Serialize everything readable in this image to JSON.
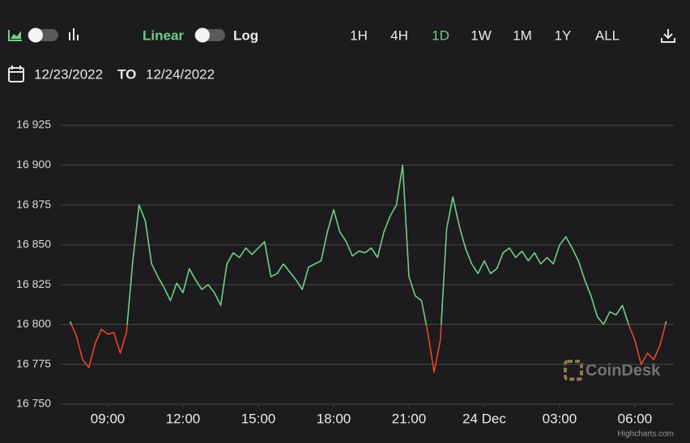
{
  "toolbar": {
    "scale_options": [
      "Linear",
      "Log"
    ],
    "scale": "Linear",
    "ranges": [
      "1H",
      "4H",
      "1D",
      "1W",
      "1M",
      "1Y",
      "ALL"
    ],
    "active_range": "1D",
    "date_from": "12/23/2022",
    "date_separator": "TO",
    "date_to": "12/24/2022"
  },
  "chart_data": {
    "type": "line",
    "x": [
      7.5,
      7.75,
      8,
      8.25,
      8.5,
      8.75,
      9,
      9.25,
      9.5,
      9.75,
      10,
      10.25,
      10.5,
      10.75,
      11,
      11.25,
      11.5,
      11.75,
      12,
      12.25,
      12.5,
      12.75,
      13,
      13.25,
      13.5,
      13.75,
      14,
      14.25,
      14.5,
      14.75,
      15,
      15.25,
      15.5,
      15.75,
      16,
      16.25,
      16.5,
      16.75,
      17,
      17.25,
      17.5,
      17.75,
      18,
      18.25,
      18.5,
      18.75,
      19,
      19.25,
      19.5,
      19.75,
      20,
      20.25,
      20.5,
      20.75,
      21,
      21.25,
      21.5,
      21.75,
      22,
      22.25,
      22.5,
      22.75,
      23,
      23.25,
      23.5,
      23.75,
      24,
      24.25,
      24.5,
      24.75,
      25,
      25.25,
      25.5,
      25.75,
      26,
      26.25,
      26.5,
      26.75,
      27,
      27.25,
      27.5,
      27.75,
      28,
      28.25,
      28.5,
      28.75,
      29,
      29.25,
      29.5,
      29.75,
      30,
      30.25,
      30.5,
      30.75,
      31,
      31.25
    ],
    "series": [
      {
        "color": "#6fcf87",
        "negative_color": "#e8452c",
        "threshold": 16800,
        "values": [
          16802,
          16793,
          16778,
          16773,
          16788,
          16797,
          16794,
          16795,
          16782,
          16795,
          16840,
          16875,
          16865,
          16838,
          16830,
          16823,
          16815,
          16826,
          16820,
          16835,
          16828,
          16822,
          16825,
          16820,
          16812,
          16838,
          16845,
          16842,
          16848,
          16844,
          16848,
          16852,
          16830,
          16832,
          16838,
          16833,
          16828,
          16822,
          16836,
          16838,
          16840,
          16858,
          16872,
          16858,
          16852,
          16843,
          16846,
          16845,
          16848,
          16842,
          16858,
          16868,
          16875,
          16900,
          16830,
          16818,
          16815,
          16795,
          16770,
          16790,
          16860,
          16880,
          16862,
          16848,
          16838,
          16832,
          16840,
          16832,
          16835,
          16845,
          16848,
          16842,
          16846,
          16840,
          16845,
          16838,
          16842,
          16838,
          16850,
          16855,
          16848,
          16840,
          16828,
          16818,
          16805,
          16800,
          16808,
          16806,
          16812,
          16800,
          16790,
          16775,
          16782,
          16778,
          16787,
          16802
        ]
      }
    ],
    "xlim": [
      7.13,
      31.55
    ],
    "xticks": [
      {
        "value": 9,
        "label": "09:00"
      },
      {
        "value": 12,
        "label": "12:00"
      },
      {
        "value": 15,
        "label": "15:00"
      },
      {
        "value": 18,
        "label": "18:00"
      },
      {
        "value": 21,
        "label": "21:00"
      },
      {
        "value": 24,
        "label": "24 Dec"
      },
      {
        "value": 27,
        "label": "03:00"
      },
      {
        "value": 30,
        "label": "06:00"
      }
    ],
    "ylim": [
      16750,
      16925
    ],
    "yticks": [
      {
        "value": 16750,
        "label": "16 750"
      },
      {
        "value": 16775,
        "label": "16 775"
      },
      {
        "value": 16800,
        "label": "16 800"
      },
      {
        "value": 16825,
        "label": "16 825"
      },
      {
        "value": 16850,
        "label": "16 850"
      },
      {
        "value": 16875,
        "label": "16 875"
      },
      {
        "value": 16900,
        "label": "16 900"
      },
      {
        "value": 16925,
        "label": "16 925"
      }
    ],
    "grid": true,
    "watermark": "CoinDesk",
    "credits": "Highcharts.com"
  }
}
